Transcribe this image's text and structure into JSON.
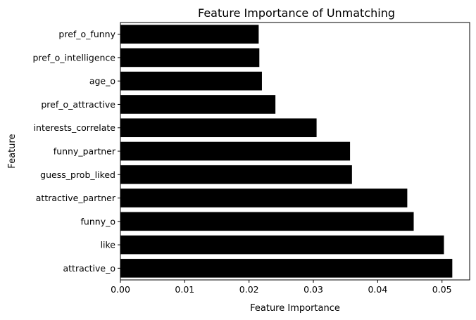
{
  "chart_data": {
    "type": "bar",
    "orientation": "horizontal",
    "title": "Feature Importance of Unmatching",
    "xlabel": "Feature Importance",
    "ylabel": "Feature",
    "categories": [
      "pref_o_funny",
      "pref_o_intelligence",
      "age_o",
      "pref_o_attractive",
      "interests_correlate",
      "funny_partner",
      "guess_prob_liked",
      "attractive_partner",
      "funny_o",
      "like",
      "attractive_o"
    ],
    "values": [
      0.0215,
      0.0216,
      0.022,
      0.0241,
      0.0305,
      0.0357,
      0.036,
      0.0446,
      0.0456,
      0.0503,
      0.0516
    ],
    "xlim": [
      0.0,
      0.0543
    ],
    "xticks": [
      0.0,
      0.01,
      0.02,
      0.03,
      0.04,
      0.05
    ],
    "xtick_labels": [
      "0.00",
      "0.01",
      "0.02",
      "0.03",
      "0.04",
      "0.05"
    ],
    "grid": false,
    "legend": "none",
    "bar_color": "#000000"
  }
}
